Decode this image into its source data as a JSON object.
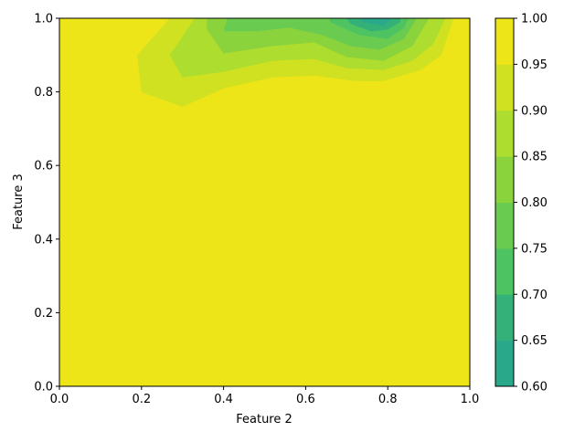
{
  "chart_data": {
    "type": "contour",
    "xlabel": "Feature 2",
    "ylabel": "Feature 3",
    "xlim": [
      0.0,
      1.0
    ],
    "ylim": [
      0.0,
      1.0
    ],
    "x_ticks": [
      "0.0",
      "0.2",
      "0.4",
      "0.6",
      "0.8",
      "1.0"
    ],
    "y_ticks": [
      "0.0",
      "0.2",
      "0.4",
      "0.6",
      "0.8",
      "1.0"
    ],
    "colorbar": {
      "ticks": [
        "0.60",
        "0.65",
        "0.70",
        "0.75",
        "0.80",
        "0.85",
        "0.90",
        "0.95",
        "1.00"
      ],
      "levels": [
        0.6,
        0.65,
        0.7,
        0.75,
        0.8,
        0.85,
        0.9,
        0.95,
        1.0
      ],
      "colors": [
        "#2aa98a",
        "#33b179",
        "#4ec362",
        "#6acb51",
        "#8bd33d",
        "#addd2e",
        "#cfe120",
        "#ede518"
      ]
    },
    "regions": [
      {
        "level": 0.925,
        "color": "#cfe120",
        "points": [
          [
            0.19,
            0.9
          ],
          [
            0.2,
            0.8
          ],
          [
            0.3,
            0.76
          ],
          [
            0.4,
            0.81
          ],
          [
            0.52,
            0.84
          ],
          [
            0.62,
            0.845
          ],
          [
            0.72,
            0.83
          ],
          [
            0.79,
            0.83
          ],
          [
            0.88,
            0.86
          ],
          [
            0.93,
            0.9
          ],
          [
            0.96,
            1.0
          ],
          [
            0.27,
            1.0
          ]
        ]
      },
      {
        "level": 0.875,
        "color": "#addd2e",
        "points": [
          [
            0.27,
            0.9
          ],
          [
            0.3,
            0.84
          ],
          [
            0.4,
            0.855
          ],
          [
            0.52,
            0.885
          ],
          [
            0.62,
            0.89
          ],
          [
            0.7,
            0.865
          ],
          [
            0.79,
            0.86
          ],
          [
            0.86,
            0.885
          ],
          [
            0.91,
            0.93
          ],
          [
            0.94,
            1.0
          ],
          [
            0.33,
            1.0
          ],
          [
            0.3,
            0.95
          ]
        ]
      },
      {
        "level": 0.825,
        "color": "#8bd33d",
        "points": [
          [
            0.36,
            0.97
          ],
          [
            0.4,
            0.905
          ],
          [
            0.52,
            0.925
          ],
          [
            0.62,
            0.935
          ],
          [
            0.7,
            0.895
          ],
          [
            0.79,
            0.885
          ],
          [
            0.86,
            0.925
          ],
          [
            0.9,
            1.0
          ],
          [
            0.36,
            1.0
          ]
        ]
      },
      {
        "level": 0.775,
        "color": "#6acb51",
        "points": [
          [
            0.4,
            0.965
          ],
          [
            0.48,
            0.965
          ],
          [
            0.56,
            0.975
          ],
          [
            0.64,
            0.955
          ],
          [
            0.71,
            0.925
          ],
          [
            0.78,
            0.915
          ],
          [
            0.84,
            0.945
          ],
          [
            0.87,
            1.0
          ],
          [
            0.41,
            1.0
          ]
        ]
      },
      {
        "level": 0.725,
        "color": "#4ec362",
        "points": [
          [
            0.66,
            0.99
          ],
          [
            0.73,
            0.955
          ],
          [
            0.8,
            0.945
          ],
          [
            0.84,
            0.975
          ],
          [
            0.85,
            1.0
          ],
          [
            0.66,
            1.0
          ]
        ]
      },
      {
        "level": 0.675,
        "color": "#33b179",
        "points": [
          [
            0.71,
            0.985
          ],
          [
            0.76,
            0.965
          ],
          [
            0.8,
            0.97
          ],
          [
            0.83,
            0.99
          ],
          [
            0.83,
            1.0
          ],
          [
            0.7,
            1.0
          ]
        ]
      },
      {
        "level": 0.625,
        "color": "#2aa98a",
        "points": [
          [
            0.74,
            0.99
          ],
          [
            0.79,
            0.98
          ],
          [
            0.81,
            1.0
          ],
          [
            0.73,
            1.0
          ]
        ]
      }
    ],
    "background_color": "#ede518"
  }
}
